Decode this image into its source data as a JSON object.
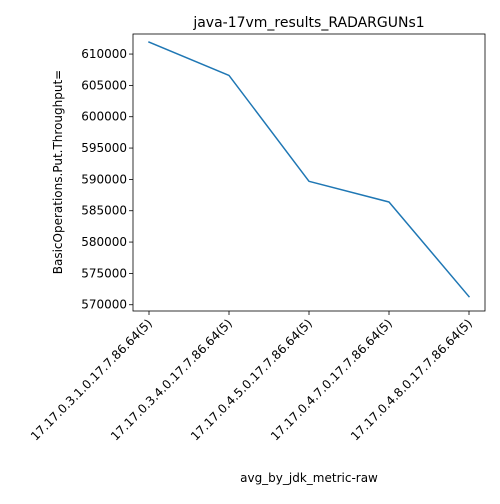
{
  "chart_data": {
    "type": "line",
    "title": "java-17vm_results_RADARGUNs1",
    "xlabel": "avg_by_jdk_metric-raw",
    "ylabel": "BasicOperations.Put.Throughput=",
    "categories": [
      "17.17.0.3.1.0.17.7.86.64(5)",
      "17.17.0.3.4.0.17.7.86.64(5)",
      "17.17.0.4.5.0.17.7.86.64(5)",
      "17.17.0.4.7.0.17.7.86.64(5)",
      "17.17.0.4.8.0.17.7.86.64(5)"
    ],
    "series": [
      {
        "values": [
          611900,
          606600,
          589700,
          586400,
          571300
        ],
        "color": "#1f77b4"
      }
    ],
    "ylim": [
      569000,
      613200
    ],
    "yticks": [
      {
        "value": 570000,
        "label": "570000"
      },
      {
        "value": 575000,
        "label": "575000"
      },
      {
        "value": 580000,
        "label": "580000"
      },
      {
        "value": 585000,
        "label": "585000"
      },
      {
        "value": 590000,
        "label": "590000"
      },
      {
        "value": 595000,
        "label": "595000"
      },
      {
        "value": 600000,
        "label": "600000"
      },
      {
        "value": 605000,
        "label": "605000"
      },
      {
        "value": 610000,
        "label": "610000"
      }
    ],
    "grid": false,
    "legend": "none"
  }
}
